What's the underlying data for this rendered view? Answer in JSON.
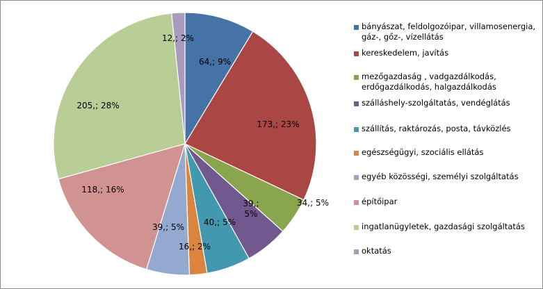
{
  "chart_data": {
    "type": "pie",
    "title": "",
    "start": "12 o'clock",
    "direction": "clockwise",
    "legend_position": "right",
    "slices": [
      {
        "name": "bányászat, feldolgozóipar, villamosenergia, gáz-, gőz-, vízellátás",
        "value": 64,
        "label": "64,; 9%",
        "color": "#4572A7"
      },
      {
        "name": "kereskedelem, javítás",
        "value": 173,
        "label": "173,; 23%",
        "color": "#AA4643"
      },
      {
        "name": "mezőgazdaság , vadgazdálkodás, erdőgazdálkodás, halgazdálkodás",
        "value": 34,
        "label": "34,; 5%",
        "color": "#89A54E"
      },
      {
        "name": "szálláshely-szolgáltatás, vendéglátás",
        "value": 39,
        "label": "39,; 5%",
        "label_lines": [
          "39,;",
          "5%"
        ],
        "color": "#71588F"
      },
      {
        "name": "szállítás, raktározás, posta, távközlés",
        "value": 40,
        "label": "40,; 5%",
        "color": "#4198AF"
      },
      {
        "name": "egészségügyi, szociális ellátás",
        "value": 16,
        "label": "16,; 2%",
        "color": "#DB843D"
      },
      {
        "name": "egyéb közösségi, személyi szolgáltatás",
        "value": 39,
        "label": "39,; 5%",
        "color": "#93A9CF"
      },
      {
        "name": "építőipar",
        "value": 118,
        "label": "118,; 16%",
        "color": "#D19392"
      },
      {
        "name": "ingatlanügyletek, gazdasági szolgáltatás",
        "value": 205,
        "label": "205,; 28%",
        "color": "#B9CD96"
      },
      {
        "name": "oktatás",
        "value": 12,
        "label": "12,; 2%",
        "color": "#A99BBD"
      }
    ]
  }
}
